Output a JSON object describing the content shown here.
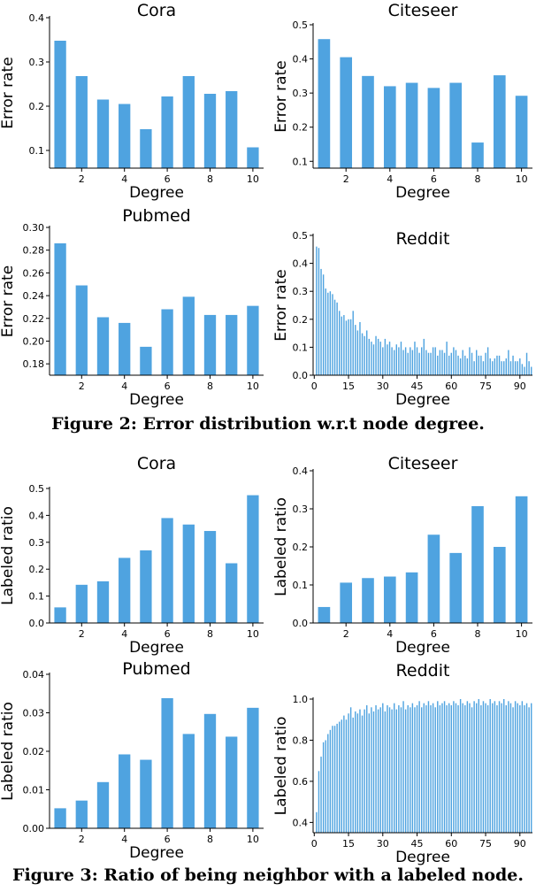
{
  "figures": [
    {
      "caption": "Figure 2: Error distribution w.r.t node degree."
    },
    {
      "caption": "Figure 3: Ratio of being neighbor with a labeled node."
    }
  ],
  "chart_data": [
    {
      "type": "bar",
      "title": "Cora",
      "xlabel": "Degree",
      "ylabel": "Error rate",
      "x": [
        1,
        2,
        3,
        4,
        5,
        6,
        7,
        8,
        9,
        10
      ],
      "values": [
        0.348,
        0.268,
        0.215,
        0.205,
        0.148,
        0.222,
        0.268,
        0.228,
        0.234,
        0.107
      ],
      "xlim": [
        0.5,
        10.5
      ],
      "ylim": [
        0.06,
        0.4
      ],
      "xticks": [
        2,
        4,
        6,
        8,
        10
      ],
      "xtick_labels": [
        "2",
        "4",
        "6",
        "8",
        "10"
      ],
      "yticks": [
        0.1,
        0.2,
        0.3,
        0.4
      ],
      "ytick_labels": [
        "0.1",
        "0.2",
        "0.3",
        "0.4"
      ],
      "color": "#4fa3e0"
    },
    {
      "type": "bar",
      "title": "Citeseer",
      "xlabel": "Degree",
      "ylabel": "Error rate",
      "x": [
        1,
        2,
        3,
        4,
        5,
        6,
        7,
        8,
        9,
        10
      ],
      "values": [
        0.458,
        0.405,
        0.35,
        0.32,
        0.33,
        0.315,
        0.33,
        0.155,
        0.352,
        0.292
      ],
      "xlim": [
        0.5,
        10.5
      ],
      "ylim": [
        0.08,
        0.5
      ],
      "xticks": [
        2,
        4,
        6,
        8,
        10
      ],
      "xtick_labels": [
        "2",
        "4",
        "6",
        "8",
        "10"
      ],
      "yticks": [
        0.1,
        0.2,
        0.3,
        0.4,
        0.5
      ],
      "ytick_labels": [
        "0.1",
        "0.2",
        "0.3",
        "0.4",
        "0.5"
      ],
      "color": "#4fa3e0"
    },
    {
      "type": "bar",
      "title": "Pubmed",
      "xlabel": "Degree",
      "ylabel": "Error rate",
      "x": [
        1,
        2,
        3,
        4,
        5,
        6,
        7,
        8,
        9,
        10
      ],
      "values": [
        0.286,
        0.249,
        0.221,
        0.216,
        0.195,
        0.228,
        0.239,
        0.223,
        0.223,
        0.231
      ],
      "xlim": [
        0.5,
        10.5
      ],
      "ylim": [
        0.17,
        0.3
      ],
      "xticks": [
        2,
        4,
        6,
        8,
        10
      ],
      "xtick_labels": [
        "2",
        "4",
        "6",
        "8",
        "10"
      ],
      "yticks": [
        0.18,
        0.2,
        0.22,
        0.24,
        0.26,
        0.28,
        0.3
      ],
      "ytick_labels": [
        "0.18",
        "0.20",
        "0.22",
        "0.24",
        "0.26",
        "0.28",
        "0.30"
      ],
      "color": "#4fa3e0"
    },
    {
      "type": "bar",
      "title": "Reddit",
      "xlabel": "Degree",
      "ylabel": "Error rate",
      "x_start": 1,
      "values": [
        0.46,
        0.455,
        0.38,
        0.36,
        0.31,
        0.295,
        0.3,
        0.29,
        0.27,
        0.26,
        0.23,
        0.21,
        0.215,
        0.195,
        0.2,
        0.2,
        0.23,
        0.18,
        0.16,
        0.19,
        0.15,
        0.14,
        0.16,
        0.13,
        0.12,
        0.11,
        0.14,
        0.13,
        0.12,
        0.1,
        0.13,
        0.11,
        0.12,
        0.1,
        0.09,
        0.11,
        0.1,
        0.12,
        0.09,
        0.1,
        0.08,
        0.1,
        0.09,
        0.12,
        0.1,
        0.08,
        0.1,
        0.13,
        0.09,
        0.08,
        0.08,
        0.1,
        0.1,
        0.07,
        0.09,
        0.09,
        0.08,
        0.12,
        0.07,
        0.08,
        0.1,
        0.09,
        0.07,
        0.06,
        0.09,
        0.07,
        0.06,
        0.1,
        0.08,
        0.05,
        0.09,
        0.07,
        0.07,
        0.05,
        0.08,
        0.1,
        0.06,
        0.05,
        0.06,
        0.07,
        0.07,
        0.05,
        0.05,
        0.06,
        0.09,
        0.05,
        0.07,
        0.05,
        0.05,
        0.06,
        0.04,
        0.03,
        0.08,
        0.05,
        0.03
      ],
      "xlim": [
        -0.5,
        95.5
      ],
      "ylim": [
        0,
        0.5
      ],
      "xticks": [
        0,
        15,
        30,
        45,
        60,
        75,
        90
      ],
      "xtick_labels": [
        "0",
        "15",
        "30",
        "45",
        "60",
        "75",
        "90"
      ],
      "yticks": [
        0,
        0.1,
        0.2,
        0.3,
        0.4,
        0.5
      ],
      "ytick_labels": [
        "0.0",
        "0.1",
        "0.2",
        "0.3",
        "0.4",
        "0.5"
      ],
      "color": "#4fa3e0"
    },
    {
      "type": "bar",
      "title": "Cora",
      "xlabel": "Degree",
      "ylabel": "Labeled ratio",
      "x": [
        1,
        2,
        3,
        4,
        5,
        6,
        7,
        8,
        9,
        10
      ],
      "values": [
        0.058,
        0.142,
        0.155,
        0.242,
        0.27,
        0.39,
        0.366,
        0.342,
        0.222,
        0.475
      ],
      "xlim": [
        0.5,
        10.5
      ],
      "ylim": [
        0,
        0.5
      ],
      "xticks": [
        2,
        4,
        6,
        8,
        10
      ],
      "xtick_labels": [
        "2",
        "4",
        "6",
        "8",
        "10"
      ],
      "yticks": [
        0,
        0.1,
        0.2,
        0.3,
        0.4,
        0.5
      ],
      "ytick_labels": [
        "0.0",
        "0.1",
        "0.2",
        "0.3",
        "0.4",
        "0.5"
      ],
      "color": "#4fa3e0"
    },
    {
      "type": "bar",
      "title": "Citeseer",
      "xlabel": "Degree",
      "ylabel": "Labeled ratio",
      "x": [
        1,
        2,
        3,
        4,
        5,
        6,
        7,
        8,
        9,
        10
      ],
      "values": [
        0.042,
        0.106,
        0.118,
        0.122,
        0.133,
        0.232,
        0.184,
        0.307,
        0.2,
        0.333
      ],
      "xlim": [
        0.5,
        10.5
      ],
      "ylim": [
        0,
        0.4
      ],
      "xticks": [
        2,
        4,
        6,
        8,
        10
      ],
      "xtick_labels": [
        "2",
        "4",
        "6",
        "8",
        "10"
      ],
      "yticks": [
        0,
        0.1,
        0.2,
        0.3,
        0.4
      ],
      "ytick_labels": [
        "0.0",
        "0.1",
        "0.2",
        "0.3",
        "0.4"
      ],
      "color": "#4fa3e0"
    },
    {
      "type": "bar",
      "title": "Pubmed",
      "xlabel": "Degree",
      "ylabel": "Labeled ratio",
      "x": [
        1,
        2,
        3,
        4,
        5,
        6,
        7,
        8,
        9,
        10
      ],
      "values": [
        0.0052,
        0.0072,
        0.012,
        0.0192,
        0.0178,
        0.0338,
        0.0245,
        0.0297,
        0.0238,
        0.0313
      ],
      "xlim": [
        0.5,
        10.5
      ],
      "ylim": [
        0,
        0.04
      ],
      "xticks": [
        2,
        4,
        6,
        8,
        10
      ],
      "xtick_labels": [
        "2",
        "4",
        "6",
        "8",
        "10"
      ],
      "yticks": [
        0,
        0.01,
        0.02,
        0.03,
        0.04
      ],
      "ytick_labels": [
        "0.00",
        "0.01",
        "0.02",
        "0.03",
        "0.04"
      ],
      "color": "#4fa3e0"
    },
    {
      "type": "bar",
      "title": "Reddit",
      "xlabel": "Degree",
      "ylabel": "Labeled ratio",
      "x_start": 1,
      "values": [
        0.45,
        0.65,
        0.72,
        0.79,
        0.8,
        0.83,
        0.85,
        0.87,
        0.87,
        0.88,
        0.89,
        0.9,
        0.92,
        0.9,
        0.93,
        0.96,
        0.91,
        0.94,
        0.93,
        0.95,
        0.92,
        0.95,
        0.97,
        0.93,
        0.96,
        0.94,
        0.97,
        0.95,
        0.96,
        0.98,
        0.94,
        0.97,
        0.96,
        0.95,
        0.98,
        0.95,
        0.97,
        0.96,
        0.99,
        0.95,
        0.97,
        0.96,
        0.98,
        0.96,
        0.97,
        0.99,
        0.96,
        0.98,
        0.97,
        0.99,
        0.97,
        0.98,
        0.96,
        0.99,
        0.97,
        0.98,
        0.99,
        0.97,
        0.98,
        0.97,
        0.99,
        0.98,
        0.97,
        1.0,
        0.98,
        0.97,
        0.99,
        0.98,
        0.96,
        0.99,
        0.98,
        1.0,
        0.97,
        0.99,
        0.98,
        0.97,
        1.0,
        0.98,
        0.99,
        0.97,
        0.99,
        0.98,
        1.0,
        0.97,
        0.99,
        0.98,
        0.96,
        0.99,
        0.98,
        0.97,
        0.99,
        0.97,
        0.98,
        0.96,
        0.98
      ],
      "xlim": [
        -0.5,
        95.5
      ],
      "ylim": [
        0.35,
        1.0
      ],
      "xticks": [
        0,
        15,
        30,
        45,
        60,
        75,
        90
      ],
      "xtick_labels": [
        "0",
        "15",
        "30",
        "45",
        "60",
        "75",
        "90"
      ],
      "yticks": [
        0.4,
        0.6,
        0.8,
        1.0
      ],
      "ytick_labels": [
        "0.4",
        "0.6",
        "0.8",
        "1.0"
      ],
      "color": "#4fa3e0"
    }
  ]
}
